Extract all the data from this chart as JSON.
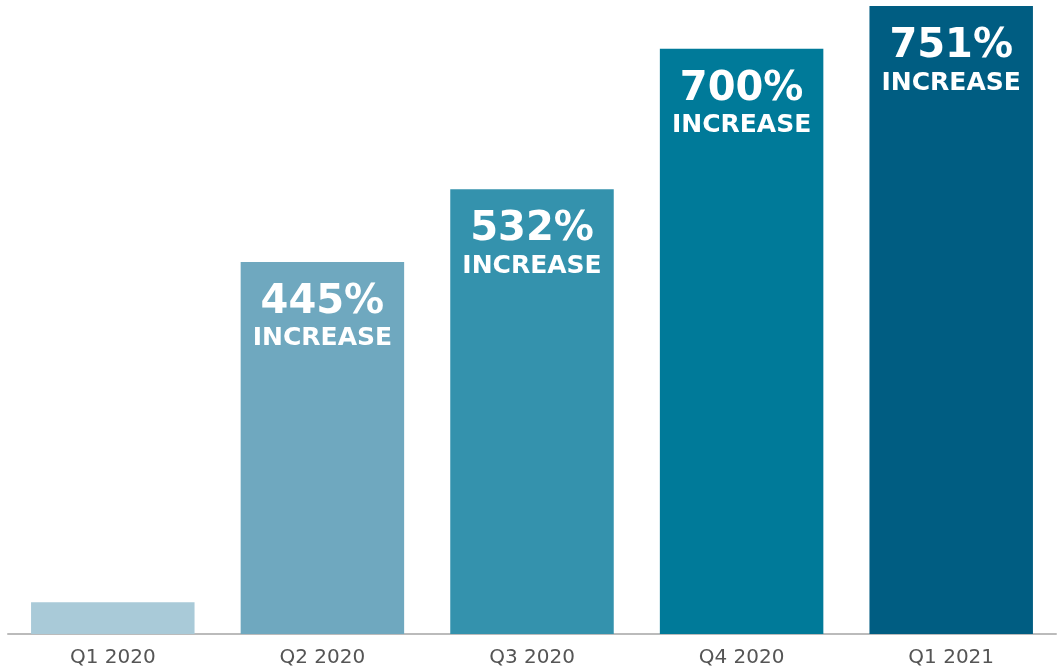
{
  "chart_data": {
    "type": "bar",
    "categories": [
      "Q1 2020",
      "Q2 2020",
      "Q3 2020",
      "Q4 2020",
      "Q1 2021"
    ],
    "values": [
      38,
      445,
      532,
      700,
      751
    ],
    "colors": [
      "#a9cad8",
      "#6fa8bf",
      "#3492ad",
      "#007a99",
      "#005d82"
    ],
    "value_labels": [
      null,
      "445%\nINCREASE",
      "532%\nINCREASE",
      "700%\nINCREASE",
      "751%\nINCREASE"
    ]
  }
}
